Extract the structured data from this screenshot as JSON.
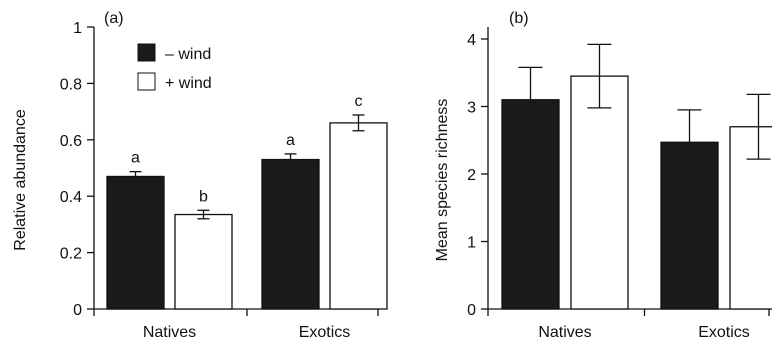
{
  "colors": {
    "minus_wind": "#1a1a1a",
    "plus_wind": "#ffffff",
    "stroke": "#111111"
  },
  "legend": {
    "minus": "– wind",
    "plus": "+ wind",
    "placement": "top-left of panel (a)"
  },
  "chart_data": [
    {
      "type": "bar",
      "panel_label": "(a)",
      "title": "",
      "xlabel": "",
      "ylabel": "Relative abundance",
      "ylim": [
        0,
        1
      ],
      "yticks": [
        0,
        0.2,
        0.4,
        0.6,
        0.8,
        1
      ],
      "ytick_labels": [
        "0",
        "0.2",
        "0.4",
        "0.6",
        "0.8",
        "1"
      ],
      "grid": false,
      "categories": [
        "Natives",
        "Exotics"
      ],
      "series": [
        {
          "name": "– wind",
          "values": [
            0.47,
            0.53
          ],
          "errors": [
            0.017,
            0.02
          ],
          "letters": [
            "a",
            "a"
          ]
        },
        {
          "name": "+ wind",
          "values": [
            0.335,
            0.66
          ],
          "errors": [
            0.015,
            0.028
          ],
          "letters": [
            "b",
            "c"
          ]
        }
      ]
    },
    {
      "type": "bar",
      "panel_label": "(b)",
      "title": "",
      "xlabel": "",
      "ylabel": "Mean species richness",
      "ylim": [
        0,
        4.3
      ],
      "yticks": [
        0,
        1,
        2,
        3,
        4
      ],
      "ytick_labels": [
        "0",
        "1",
        "2",
        "3",
        "4"
      ],
      "grid": false,
      "categories": [
        "Natives",
        "Exotics"
      ],
      "series": [
        {
          "name": "– wind",
          "values": [
            3.1,
            2.47
          ],
          "errors": [
            0.48,
            0.48
          ],
          "letters": [
            "",
            ""
          ]
        },
        {
          "name": "+ wind",
          "values": [
            3.45,
            2.7
          ],
          "errors": [
            0.47,
            0.48
          ],
          "letters": [
            "",
            ""
          ]
        }
      ]
    }
  ]
}
